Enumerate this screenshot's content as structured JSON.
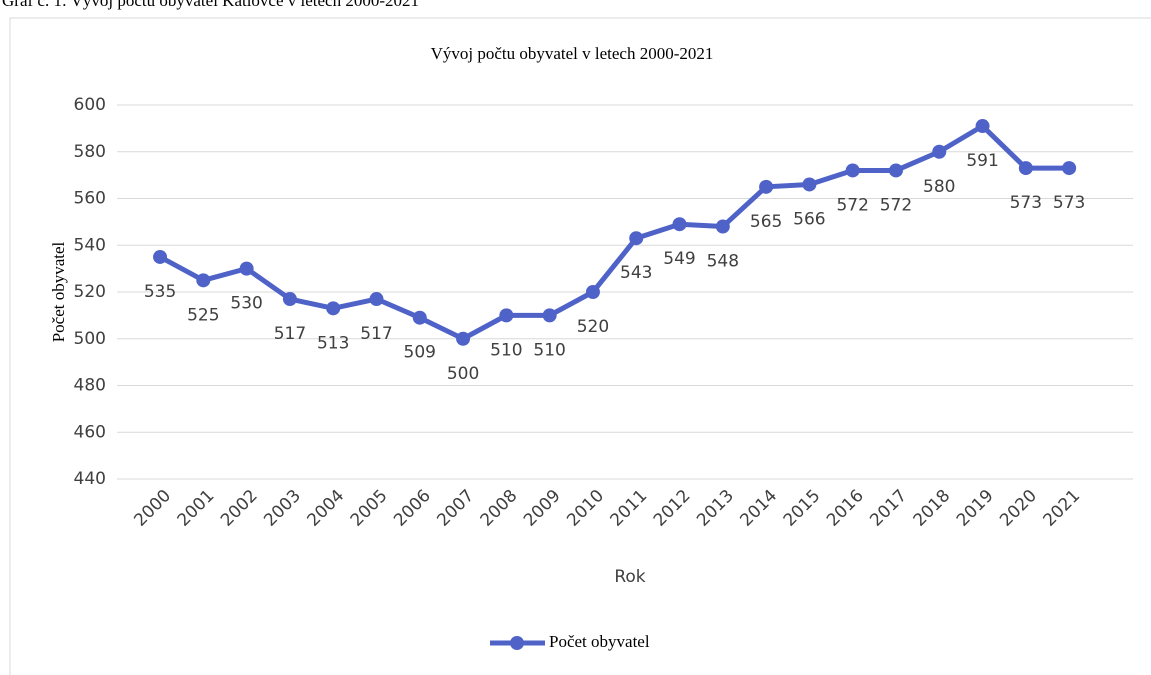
{
  "caption": "Graf č. 1: Vývoj počtu obyvatel Katlovce v letech 2000-2021",
  "chart_data": {
    "type": "line",
    "title": "Vývoj počtu obyvatel v letech 2000-2021",
    "x_label": "Rok",
    "y_label": "Počet obyvatel",
    "categories": [
      "2000",
      "2001",
      "2002",
      "2003",
      "2004",
      "2005",
      "2006",
      "2007",
      "2008",
      "2009",
      "2010",
      "2011",
      "2012",
      "2013",
      "2014",
      "2015",
      "2016",
      "2017",
      "2018",
      "2019",
      "2020",
      "2021"
    ],
    "series": [
      {
        "name": "Počet obyvatel",
        "color": "#4f62c8",
        "values": [
          535,
          525,
          530,
          517,
          513,
          517,
          509,
          500,
          510,
          510,
          520,
          543,
          549,
          548,
          565,
          566,
          572,
          572,
          580,
          591,
          573,
          573
        ]
      }
    ],
    "ylim": [
      440,
      600
    ],
    "yticks": [
      440,
      460,
      480,
      500,
      520,
      540,
      560,
      580,
      600
    ],
    "grid": true,
    "legend": "bottom"
  }
}
